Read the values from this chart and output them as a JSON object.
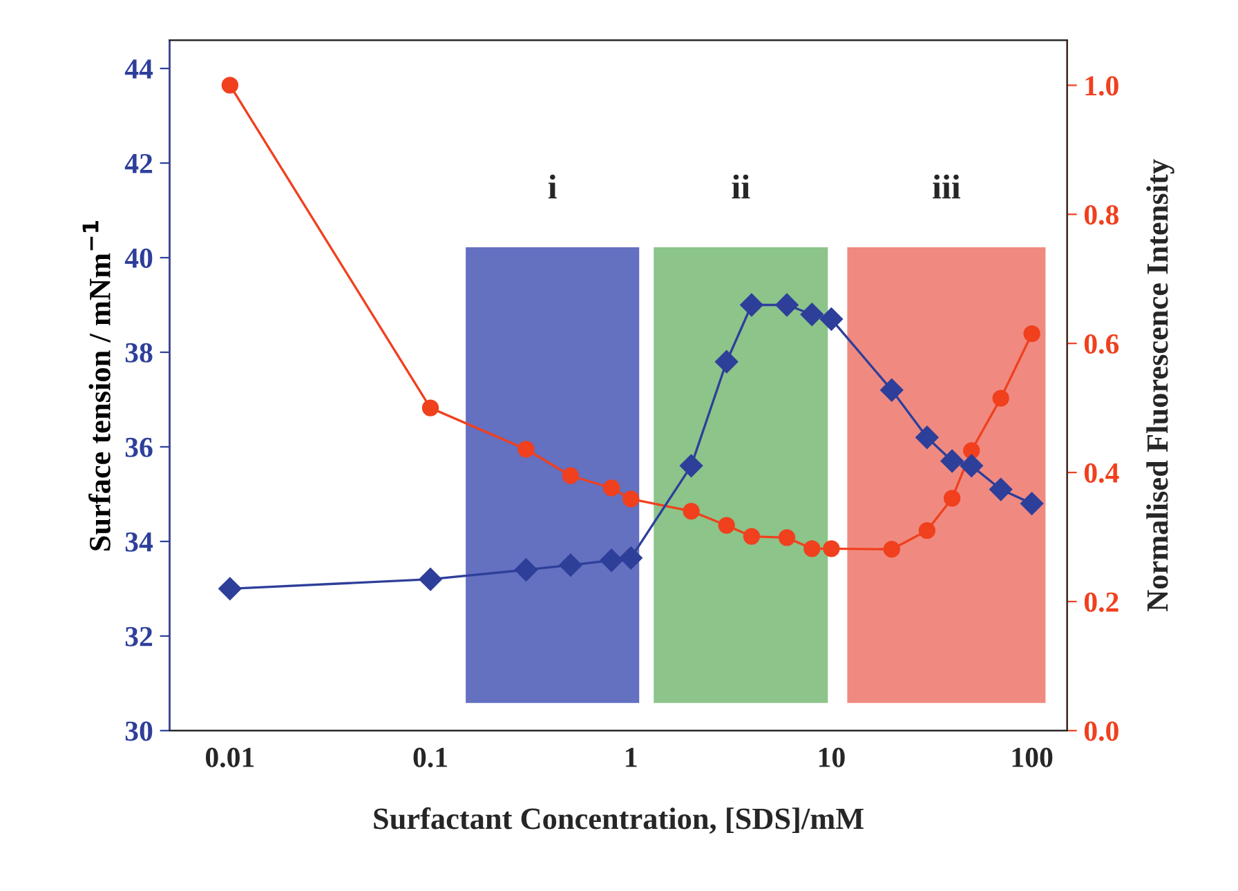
{
  "chart_data": {
    "type": "line",
    "xlabel": "Surfactant Concentration, [SDS]/mM",
    "ylabel": "Surface tension / mNm$^{−1}$",
    "y2label": "Normalised Fluorescence Intensity",
    "log": "x",
    "grid": false,
    "line_style": "solid",
    "xlim": [
      0.005,
      150
    ],
    "xticks": [
      0.01,
      0.1,
      1,
      10,
      100
    ],
    "ylim": [
      30,
      44.6
    ],
    "yticks": [
      30,
      32,
      34,
      36,
      38,
      40,
      42,
      44
    ],
    "y2lim": [
      0,
      1.07
    ],
    "y2ticks": [
      {
        "value": 0,
        "label": "0.0"
      },
      {
        "value": 0.2,
        "label": "0.2"
      },
      {
        "value": 0.4,
        "label": "0.4"
      },
      {
        "value": 0.6,
        "label": "0.6"
      },
      {
        "value": 0.8,
        "label": "0.8"
      },
      {
        "value": 1,
        "label": "1.0"
      }
    ],
    "series": [
      {
        "color": "#2e3f9a",
        "marker": "diamond",
        "x": [
          0.01,
          0.1,
          0.3,
          0.5,
          0.8,
          1,
          2,
          3,
          4,
          6,
          8,
          10,
          20,
          30,
          40,
          50,
          70,
          100
        ],
        "values": [
          33.0,
          33.2,
          33.4,
          33.5,
          33.6,
          33.65,
          35.6,
          37.8,
          39.0,
          39.0,
          38.8,
          38.7,
          37.2,
          36.2,
          35.7,
          35.6,
          35.1,
          34.8
        ]
      },
      {
        "color": "#f0401e",
        "marker": "circle",
        "axis": "y2",
        "x": [
          0.01,
          0.1,
          0.3,
          0.5,
          0.8,
          1,
          2,
          3,
          4,
          6,
          8,
          10,
          20,
          30,
          40,
          50,
          70,
          100
        ],
        "values": [
          1.0,
          0.5,
          0.436,
          0.395,
          0.376,
          0.359,
          0.34,
          0.318,
          0.301,
          0.299,
          0.282,
          0.282,
          0.281,
          0.31,
          0.36,
          0.434,
          0.515,
          0.615
        ]
      }
    ],
    "bands": [
      {
        "axis": "x",
        "from": 0.15,
        "to": 1.1,
        "label": "i",
        "color": "#6470c0"
      },
      {
        "axis": "x",
        "from": 1.3,
        "to": 9.6,
        "label": "ii",
        "color": "#8cc48a"
      },
      {
        "axis": "x",
        "from": 12,
        "to": 117,
        "label": "iii",
        "color": "#f08a80"
      }
    ]
  }
}
